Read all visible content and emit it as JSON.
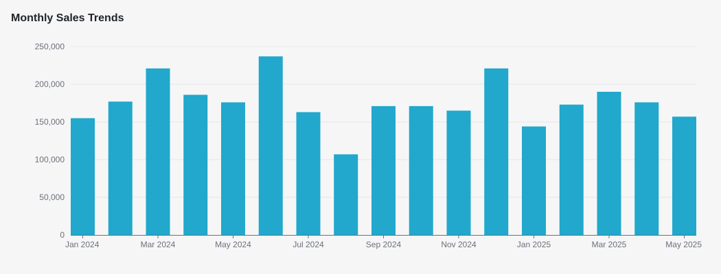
{
  "title": "Monthly Sales Trends",
  "colors": {
    "bar": "#21a8cc",
    "grid": "#e3e5ea",
    "axis": "#6b7078",
    "background": "#f6f6f7"
  },
  "chart_data": {
    "type": "bar",
    "title": "Monthly Sales Trends",
    "xlabel": "",
    "ylabel": "",
    "ylim": [
      0,
      250000
    ],
    "grid": true,
    "legend": "none",
    "yticks": [
      0,
      50000,
      100000,
      150000,
      200000,
      250000
    ],
    "ytick_labels": [
      "0",
      "50,000",
      "100,000",
      "150,000",
      "200,000",
      "250,000"
    ],
    "categories": [
      "Jan 2024",
      "Feb 2024",
      "Mar 2024",
      "Apr 2024",
      "May 2024",
      "Jun 2024",
      "Jul 2024",
      "Aug 2024",
      "Sep 2024",
      "Oct 2024",
      "Nov 2024",
      "Dec 2024",
      "Jan 2025",
      "Feb 2025",
      "Mar 2025",
      "Apr 2025",
      "May 2025"
    ],
    "xtick_labels": [
      "Jan 2024",
      "Mar 2024",
      "May 2024",
      "Jul 2024",
      "Sep 2024",
      "Nov 2024",
      "Jan 2025",
      "Mar 2025",
      "May 2025"
    ],
    "values": [
      155000,
      177000,
      221000,
      186000,
      176000,
      237000,
      163000,
      107000,
      171000,
      171000,
      165000,
      221000,
      144000,
      173000,
      190000,
      176000,
      157000
    ]
  }
}
